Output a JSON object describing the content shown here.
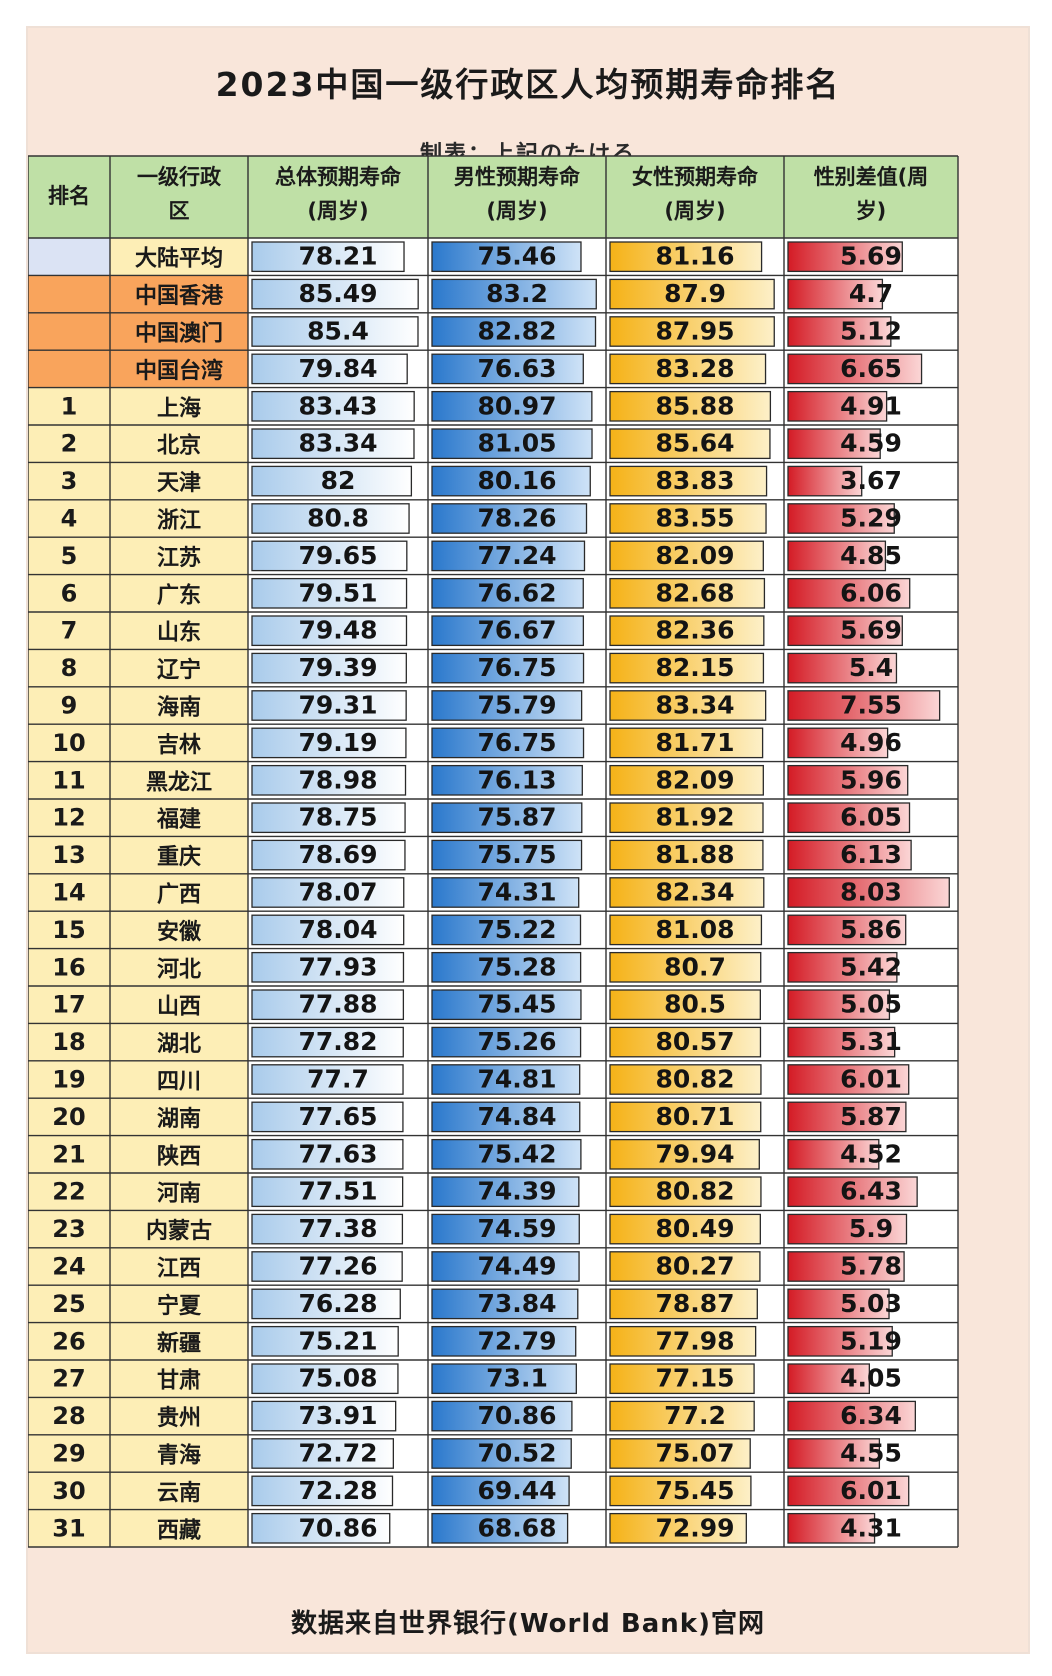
{
  "title": "2023中国一级行政区人均预期寿命排名",
  "subtitle": "制表：上記のたける",
  "footer": "数据来自世界银行(World Bank)官网",
  "colors": {
    "header_bg": "#bfe0a6",
    "rank_bg": "#fdeeb6",
    "mainland_bg": "#dbe3f4",
    "sar_bg": "#f9a45c",
    "total_bar": "#bfd8ef",
    "male_bar": "#2f80d2",
    "female_bar": "#f6b91e",
    "gap_bar": "#d7202a"
  },
  "chart_data": {
    "type": "table",
    "headers": [
      "排名",
      "一级行政区",
      "总体预期寿命(周岁)",
      "男性预期寿命(周岁)",
      "女性预期寿命(周岁)",
      "性别差值(周岁)"
    ],
    "rows": [
      {
        "rank": "",
        "region": "大陆平均",
        "total": 78.21,
        "male": 75.46,
        "female": 81.16,
        "gap": 5.69
      },
      {
        "rank": "",
        "region": "中国香港",
        "total": 85.49,
        "male": 83.2,
        "female": 87.9,
        "gap": 4.7
      },
      {
        "rank": "",
        "region": "中国澳门",
        "total": 85.4,
        "male": 82.82,
        "female": 87.95,
        "gap": 5.12
      },
      {
        "rank": "",
        "region": "中国台湾",
        "total": 79.84,
        "male": 76.63,
        "female": 83.28,
        "gap": 6.65
      },
      {
        "rank": "1",
        "region": "上海",
        "total": 83.43,
        "male": 80.97,
        "female": 85.88,
        "gap": 4.91
      },
      {
        "rank": "2",
        "region": "北京",
        "total": 83.34,
        "male": 81.05,
        "female": 85.64,
        "gap": 4.59
      },
      {
        "rank": "3",
        "region": "天津",
        "total": 82,
        "male": 80.16,
        "female": 83.83,
        "gap": 3.67
      },
      {
        "rank": "4",
        "region": "浙江",
        "total": 80.8,
        "male": 78.26,
        "female": 83.55,
        "gap": 5.29
      },
      {
        "rank": "5",
        "region": "江苏",
        "total": 79.65,
        "male": 77.24,
        "female": 82.09,
        "gap": 4.85
      },
      {
        "rank": "6",
        "region": "广东",
        "total": 79.51,
        "male": 76.62,
        "female": 82.68,
        "gap": 6.06
      },
      {
        "rank": "7",
        "region": "山东",
        "total": 79.48,
        "male": 76.67,
        "female": 82.36,
        "gap": 5.69
      },
      {
        "rank": "8",
        "region": "辽宁",
        "total": 79.39,
        "male": 76.75,
        "female": 82.15,
        "gap": 5.4
      },
      {
        "rank": "9",
        "region": "海南",
        "total": 79.31,
        "male": 75.79,
        "female": 83.34,
        "gap": 7.55
      },
      {
        "rank": "10",
        "region": "吉林",
        "total": 79.19,
        "male": 76.75,
        "female": 81.71,
        "gap": 4.96
      },
      {
        "rank": "11",
        "region": "黑龙江",
        "total": 78.98,
        "male": 76.13,
        "female": 82.09,
        "gap": 5.96
      },
      {
        "rank": "12",
        "region": "福建",
        "total": 78.75,
        "male": 75.87,
        "female": 81.92,
        "gap": 6.05
      },
      {
        "rank": "13",
        "region": "重庆",
        "total": 78.69,
        "male": 75.75,
        "female": 81.88,
        "gap": 6.13
      },
      {
        "rank": "14",
        "region": "广西",
        "total": 78.07,
        "male": 74.31,
        "female": 82.34,
        "gap": 8.03
      },
      {
        "rank": "15",
        "region": "安徽",
        "total": 78.04,
        "male": 75.22,
        "female": 81.08,
        "gap": 5.86
      },
      {
        "rank": "16",
        "region": "河北",
        "total": 77.93,
        "male": 75.28,
        "female": 80.7,
        "gap": 5.42
      },
      {
        "rank": "17",
        "region": "山西",
        "total": 77.88,
        "male": 75.45,
        "female": 80.5,
        "gap": 5.05
      },
      {
        "rank": "18",
        "region": "湖北",
        "total": 77.82,
        "male": 75.26,
        "female": 80.57,
        "gap": 5.31
      },
      {
        "rank": "19",
        "region": "四川",
        "total": 77.7,
        "male": 74.81,
        "female": 80.82,
        "gap": 6.01
      },
      {
        "rank": "20",
        "region": "湖南",
        "total": 77.65,
        "male": 74.84,
        "female": 80.71,
        "gap": 5.87
      },
      {
        "rank": "21",
        "region": "陕西",
        "total": 77.63,
        "male": 75.42,
        "female": 79.94,
        "gap": 4.52
      },
      {
        "rank": "22",
        "region": "河南",
        "total": 77.51,
        "male": 74.39,
        "female": 80.82,
        "gap": 6.43
      },
      {
        "rank": "23",
        "region": "内蒙古",
        "total": 77.38,
        "male": 74.59,
        "female": 80.49,
        "gap": 5.9
      },
      {
        "rank": "24",
        "region": "江西",
        "total": 77.26,
        "male": 74.49,
        "female": 80.27,
        "gap": 5.78
      },
      {
        "rank": "25",
        "region": "宁夏",
        "total": 76.28,
        "male": 73.84,
        "female": 78.87,
        "gap": 5.03
      },
      {
        "rank": "26",
        "region": "新疆",
        "total": 75.21,
        "male": 72.79,
        "female": 77.98,
        "gap": 5.19
      },
      {
        "rank": "27",
        "region": "甘肃",
        "total": 75.08,
        "male": 73.1,
        "female": 77.15,
        "gap": 4.05
      },
      {
        "rank": "28",
        "region": "贵州",
        "total": 73.91,
        "male": 70.86,
        "female": 77.2,
        "gap": 6.34
      },
      {
        "rank": "29",
        "region": "青海",
        "total": 72.72,
        "male": 70.52,
        "female": 75.07,
        "gap": 4.55
      },
      {
        "rank": "30",
        "region": "云南",
        "total": 72.28,
        "male": 69.44,
        "female": 75.45,
        "gap": 6.01
      },
      {
        "rank": "31",
        "region": "西藏",
        "total": 70.86,
        "male": 68.68,
        "female": 72.99,
        "gap": 4.31
      }
    ]
  }
}
